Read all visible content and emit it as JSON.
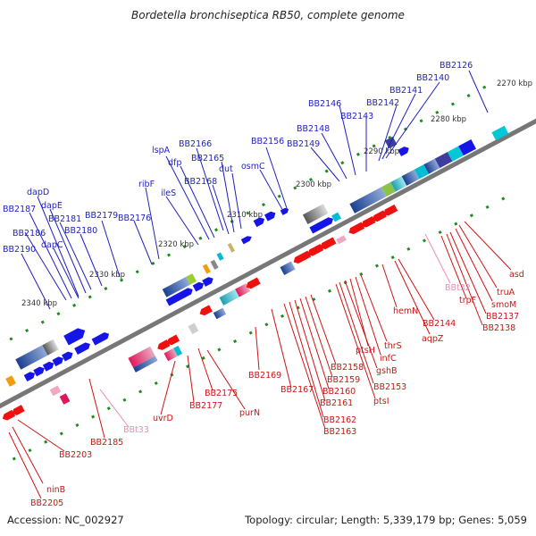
{
  "title": "Bordetella bronchiseptica RB50, complete genome",
  "accession": "Accession: NC_002927",
  "topology": "Topology: circular; Length: 5,339,179 bp; Genes: 5,059",
  "colors": {
    "axis": "#777777",
    "upper_label": "#1f1fbf",
    "lower_label": "#cc1414",
    "rna_label": "#f08cb4",
    "upper_strand": "#1515e8",
    "lower_strand": "#ef1010",
    "tick": "#1e8c1e"
  },
  "ticks": [
    "2270 kbp",
    "2280 kbp",
    "2290 kbp",
    "2300 kbp",
    "2310 kbp",
    "2320 kbp",
    "2330 kbp",
    "2340 kbp"
  ],
  "upper_genes": [
    "BB2126",
    "BB2140",
    "BB2141",
    "BB2142",
    "BB2143",
    "BB2146",
    "BB2148",
    "BB2149",
    "BB2156",
    "osmC",
    "dut",
    "BB2166",
    "lspA",
    "BB2165",
    "dfp",
    "BB2168",
    "ileS",
    "ribF",
    "BB2176",
    "BB2179",
    "BB2180",
    "BB2181",
    "dapE",
    "dapD",
    "BB2187",
    "BB2186",
    "dapC",
    "BB2190"
  ],
  "lower_genes": [
    "asd",
    "truA",
    "smoM",
    "BB2137",
    "BB2138",
    "trpF",
    "BB2144",
    "aqpZ",
    "hemN",
    "thrS",
    "infC",
    "ptsH",
    "gshB",
    "BB2153",
    "ptsI",
    "BB2158",
    "BB2159",
    "BB2160",
    "BB2161",
    "BB2162",
    "BB2163",
    "BB2167",
    "BB2169",
    "purN",
    "BB2175",
    "BB2177",
    "uvrD",
    "BB2185",
    "BB2203",
    "ninB",
    "BB2205"
  ],
  "rna_genes": [
    "BBt32",
    "BBt33"
  ]
}
